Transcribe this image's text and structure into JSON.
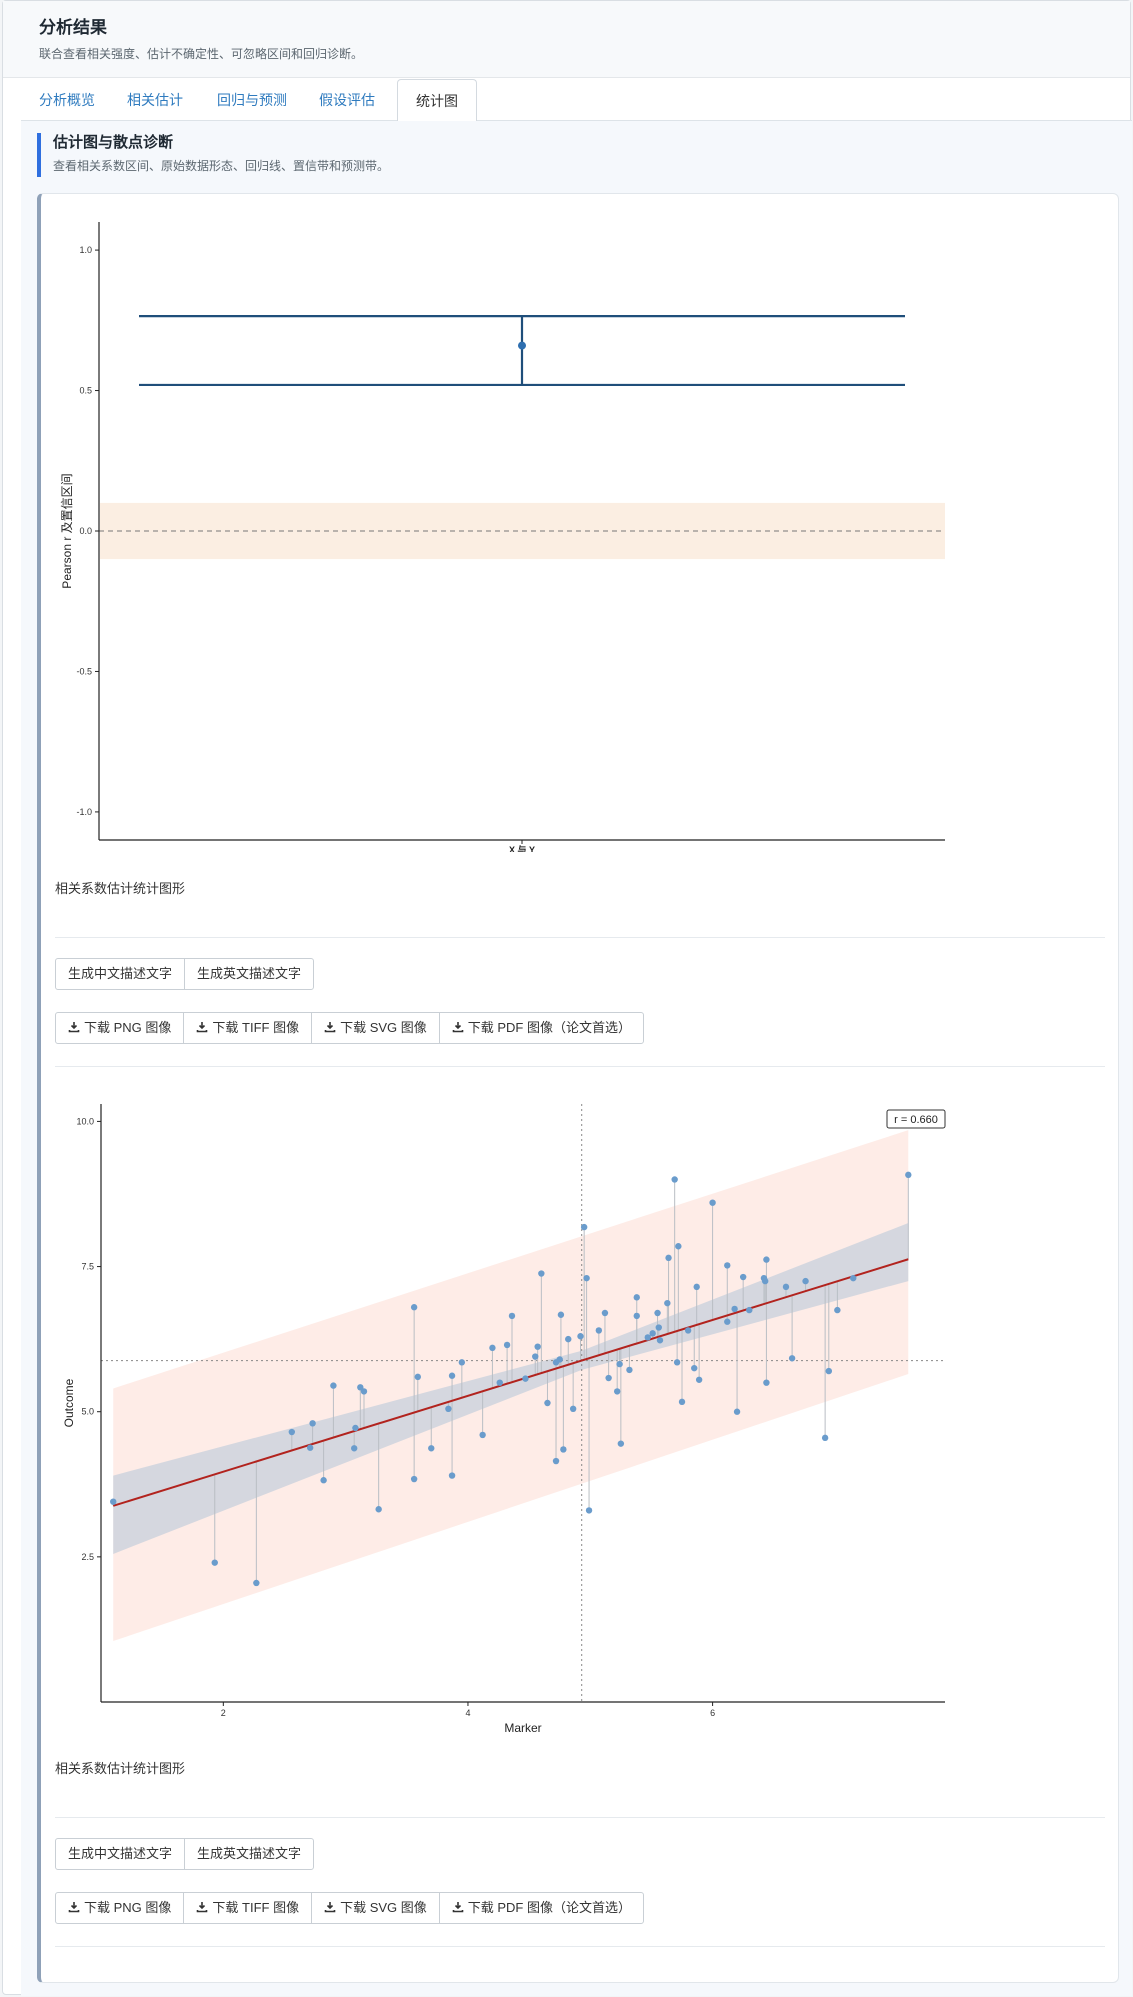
{
  "header": {
    "title": "分析结果",
    "subtitle": "联合查看相关强度、估计不确定性、可忽略区间和回归诊断。"
  },
  "tabs": [
    {
      "label": "分析概览"
    },
    {
      "label": "相关估计"
    },
    {
      "label": "回归与预测"
    },
    {
      "label": "假设评估"
    },
    {
      "label": "统计图"
    }
  ],
  "active_tab": "统计图",
  "section": {
    "title": "估计图与散点诊断",
    "subtitle": "查看相关系数区间、原始数据形态、回归线、置信带和预测带。"
  },
  "figure1": {
    "caption": "相关系数估计统计图形",
    "buttons": {
      "cn_text": "生成中文描述文字",
      "en_text": "生成英文描述文字"
    },
    "downloads": {
      "png": "下载 PNG 图像",
      "tiff": "下载 TIFF 图像",
      "svg": "下载 SVG 图像",
      "pdf": "下载 PDF 图像（论文首选）"
    }
  },
  "figure2": {
    "caption": "相关系数估计统计图形",
    "buttons": {
      "cn_text": "生成中文描述文字",
      "en_text": "生成英文描述文字"
    },
    "downloads": {
      "png": "下载 PNG 图像",
      "tiff": "下载 TIFF 图像",
      "svg": "下载 SVG 图像",
      "pdf": "下载 PDF 图像（论文首选）"
    }
  },
  "colors": {
    "accent": "#2f6fdf",
    "link": "#2f7bbf",
    "estimate": "#1f4e7a",
    "rope_band": "#fbeee2",
    "regression": "#b2231e",
    "ci_band": "#c7d0dc",
    "pi_band": "#fde5df",
    "point": "#6a9ccc"
  },
  "icons": {
    "download": "download-icon"
  },
  "chart_data": [
    {
      "type": "errorbar",
      "categories": [
        "X 与 Y"
      ],
      "estimate": 0.66,
      "ci": [
        0.52,
        0.765
      ],
      "rope": [
        -0.1,
        0.1
      ],
      "reference_line": 0,
      "ylabel": "Pearson r 及置信区间",
      "ylim": [
        -1.1,
        1.1
      ],
      "yticks": [
        1.0,
        0.5,
        0.0,
        -0.5,
        -1.0
      ],
      "ytick_labels": [
        "1.0",
        "0.5",
        "0.0",
        "-0.5",
        "-1.0"
      ]
    },
    {
      "type": "scatter",
      "xlabel": "Marker",
      "ylabel": "Outcome",
      "xlim": [
        1.0,
        7.9
      ],
      "ylim": [
        0.0,
        10.3
      ],
      "xticks": [
        2,
        4,
        6
      ],
      "xtick_labels": [
        "2",
        "4",
        "6"
      ],
      "yticks": [
        10.0,
        7.5,
        5.0,
        2.5
      ],
      "ytick_labels": [
        "10.0",
        "7.5",
        "5.0",
        "2.5"
      ],
      "annotation": "r = 0.660",
      "mean_x": 4.93,
      "mean_y": 5.88,
      "regression": {
        "intercept": 2.66,
        "slope": 0.6534,
        "x_range": [
          1.1,
          7.6
        ]
      },
      "ci_band": {
        "x": [
          1.1,
          4.93,
          7.6
        ],
        "lower": [
          2.55,
          5.72,
          7.25
        ],
        "upper": [
          3.9,
          6.05,
          8.25
        ]
      },
      "pi_band": {
        "x": [
          1.1,
          7.6
        ],
        "lower": [
          1.05,
          5.65
        ],
        "upper": [
          5.4,
          9.85
        ]
      },
      "points": [
        [
          1.1,
          3.45
        ],
        [
          1.93,
          2.4
        ],
        [
          2.27,
          2.05
        ],
        [
          2.56,
          4.65
        ],
        [
          2.71,
          4.38
        ],
        [
          2.73,
          4.8
        ],
        [
          2.82,
          3.82
        ],
        [
          2.9,
          5.45
        ],
        [
          3.07,
          4.37
        ],
        [
          3.08,
          4.72
        ],
        [
          3.12,
          5.42
        ],
        [
          3.15,
          5.35
        ],
        [
          3.27,
          3.32
        ],
        [
          3.56,
          6.8
        ],
        [
          3.56,
          3.84
        ],
        [
          3.59,
          5.6
        ],
        [
          3.7,
          4.37
        ],
        [
          3.84,
          5.05
        ],
        [
          3.87,
          5.62
        ],
        [
          3.87,
          3.9
        ],
        [
          3.95,
          5.85
        ],
        [
          4.12,
          4.6
        ],
        [
          4.2,
          6.1
        ],
        [
          4.26,
          5.5
        ],
        [
          4.32,
          6.15
        ],
        [
          4.36,
          6.65
        ],
        [
          4.47,
          5.57
        ],
        [
          4.55,
          5.95
        ],
        [
          4.57,
          6.12
        ],
        [
          4.6,
          7.38
        ],
        [
          4.65,
          5.15
        ],
        [
          4.72,
          4.15
        ],
        [
          4.72,
          5.85
        ],
        [
          4.75,
          5.9
        ],
        [
          4.76,
          6.67
        ],
        [
          4.78,
          4.35
        ],
        [
          4.82,
          6.25
        ],
        [
          4.86,
          5.05
        ],
        [
          4.92,
          6.3
        ],
        [
          4.95,
          8.18
        ],
        [
          4.97,
          7.3
        ],
        [
          4.99,
          3.3
        ],
        [
          5.07,
          6.4
        ],
        [
          5.12,
          6.7
        ],
        [
          5.15,
          5.58
        ],
        [
          5.22,
          5.35
        ],
        [
          5.24,
          5.82
        ],
        [
          5.25,
          4.45
        ],
        [
          5.32,
          5.72
        ],
        [
          5.38,
          6.65
        ],
        [
          5.38,
          6.97
        ],
        [
          5.47,
          6.28
        ],
        [
          5.51,
          6.35
        ],
        [
          5.55,
          6.7
        ],
        [
          5.56,
          6.45
        ],
        [
          5.57,
          6.23
        ],
        [
          5.63,
          6.87
        ],
        [
          5.64,
          7.65
        ],
        [
          5.69,
          9.0
        ],
        [
          5.71,
          5.85
        ],
        [
          5.72,
          7.85
        ],
        [
          5.75,
          5.17
        ],
        [
          5.8,
          6.4
        ],
        [
          5.85,
          5.75
        ],
        [
          5.87,
          7.15
        ],
        [
          5.89,
          5.55
        ],
        [
          6.0,
          8.6
        ],
        [
          6.12,
          6.55
        ],
        [
          6.12,
          7.52
        ],
        [
          6.18,
          6.77
        ],
        [
          6.2,
          5.0
        ],
        [
          6.25,
          7.32
        ],
        [
          6.3,
          6.75
        ],
        [
          6.42,
          7.3
        ],
        [
          6.43,
          7.25
        ],
        [
          6.44,
          7.62
        ],
        [
          6.44,
          5.5
        ],
        [
          6.6,
          7.15
        ],
        [
          6.65,
          5.92
        ],
        [
          6.76,
          7.25
        ],
        [
          6.92,
          4.55
        ],
        [
          6.95,
          5.7
        ],
        [
          7.02,
          6.75
        ],
        [
          7.15,
          7.3
        ],
        [
          7.6,
          9.08
        ]
      ]
    }
  ]
}
